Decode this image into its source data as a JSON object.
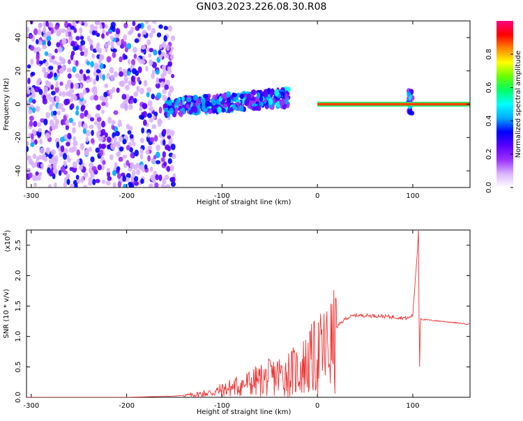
{
  "title": "GN03.2023.226.08.30.R08",
  "chart_data": [
    {
      "type": "heatmap",
      "xlabel": "Height of straight line (km)",
      "ylabel": "Frequency (Hz)",
      "xlim": [
        -305,
        160
      ],
      "ylim": [
        -50,
        50
      ],
      "xticks": [
        -300,
        -200,
        -100,
        0,
        100
      ],
      "yticks": [
        -40,
        -20,
        0,
        20,
        40
      ],
      "colorbar": {
        "label": "Normalized spectral amplitude",
        "range": [
          0.0,
          1.0
        ],
        "ticks": [
          0.0,
          0.2,
          0.4,
          0.6,
          0.8
        ],
        "colors": [
          "#ffffff",
          "#d9b3ff",
          "#9b30ff",
          "#5a00ff",
          "#0000ff",
          "#00aaff",
          "#00ffff",
          "#00ff66",
          "#66ff00",
          "#ffff00",
          "#ff8800",
          "#ff0000",
          "#ff0080"
        ]
      },
      "description_series": [
        {
          "x": [
            -305,
            -150
          ],
          "y": [
            -50,
            50
          ],
          "amplitude": 0.15
        },
        {
          "x": [
            -160,
            -30
          ],
          "y": [
            -8,
            10
          ],
          "amplitude": 0.35
        },
        {
          "x": [
            0,
            160
          ],
          "y": [
            -1,
            1
          ],
          "amplitude": 0.8
        },
        {
          "x": [
            95,
            100
          ],
          "y": [
            -6,
            8
          ],
          "amplitude": 0.4
        }
      ]
    },
    {
      "type": "line",
      "xlabel": "Height of straight line (km)",
      "ylabel": "SNR (10 * v/v)",
      "y_multiplier": "(x10",
      "y_multiplier_exp": "4",
      "xlim": [
        -305,
        160
      ],
      "ylim": [
        0,
        2.75
      ],
      "xticks": [
        -300,
        -200,
        -100,
        0,
        100
      ],
      "yticks": [
        0.0,
        0.5,
        1.0,
        1.5,
        2.0,
        2.5
      ],
      "color": "#ee3333",
      "x": [
        -305,
        -250,
        -200,
        -150,
        -130,
        -110,
        -100,
        -80,
        -60,
        -40,
        -20,
        -10,
        0,
        10,
        20,
        30,
        40,
        60,
        80,
        95,
        100,
        105,
        106,
        107,
        108,
        110,
        130,
        160
      ],
      "y": [
        0.0,
        0.0,
        0.0,
        0.02,
        0.05,
        0.1,
        0.15,
        0.25,
        0.35,
        0.45,
        0.55,
        0.7,
        0.85,
        1.0,
        1.15,
        1.3,
        1.35,
        1.34,
        1.32,
        1.3,
        1.35,
        2.45,
        2.75,
        0.3,
        1.3,
        1.28,
        1.25,
        1.2
      ]
    }
  ]
}
